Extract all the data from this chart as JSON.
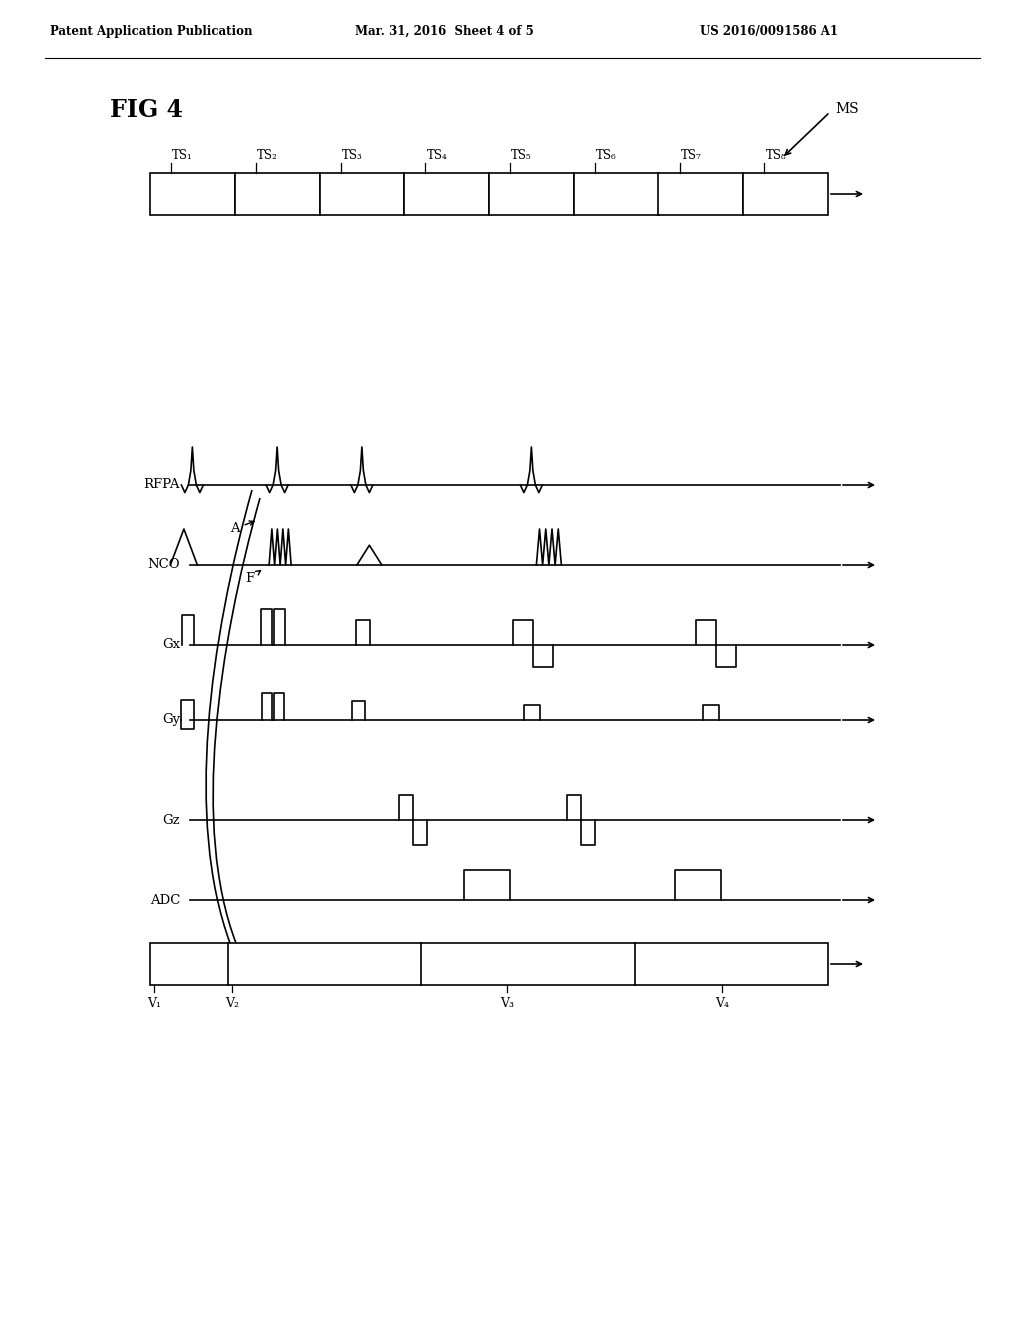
{
  "header_left": "Patent Application Publication",
  "header_mid": "Mar. 31, 2016  Sheet 4 of 5",
  "header_right": "US 2016/0091586 A1",
  "fig_label": "FIG 4",
  "ms_label": "MS",
  "ts_labels": [
    "TS₁",
    "TS₂",
    "TS₃",
    "TS₄",
    "TS₅",
    "TS₆",
    "TS₇",
    "TS₈"
  ],
  "v_labels": [
    "V₁",
    "V₂",
    "V₃",
    "V₄"
  ],
  "signal_names": [
    "RFPA",
    "NCO",
    "Gx",
    "Gy",
    "Gz",
    "ADC"
  ],
  "bg_color": "#ffffff",
  "line_color": "#000000"
}
